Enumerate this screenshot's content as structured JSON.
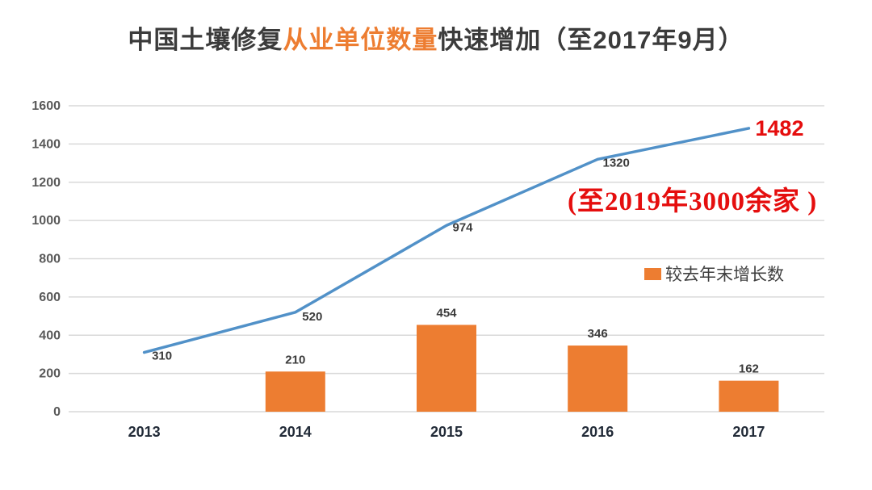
{
  "title": {
    "prefix": "中国土壤修复",
    "highlight": "从业单位数量",
    "suffix": "快速增加（至2017年9月）"
  },
  "annotations": {
    "note": "(至2019年3000余家 )",
    "final_value": "1482"
  },
  "colors": {
    "line": "#5191c8",
    "bar": "#ed7d31",
    "red": "#e50e0e",
    "grid": "#d9d9d9",
    "title_text": "#3b3b3b",
    "title_highlight": "#ed7d31",
    "y_tick_text": "#595959",
    "x_tick_text": "#222b38",
    "data_label_text": "#3b3b3b"
  },
  "chart_data": {
    "type": "line+bar",
    "categories": [
      "2013",
      "2014",
      "2015",
      "2016",
      "2017"
    ],
    "series": [
      {
        "name": "",
        "type": "line",
        "values": [
          310,
          520,
          974,
          1320,
          1482
        ]
      },
      {
        "name": "较去年末增长数",
        "type": "bar",
        "values": [
          null,
          210,
          454,
          346,
          162
        ]
      }
    ],
    "ylim": [
      0,
      1600
    ],
    "ytick_step": 200,
    "yticks": [
      0,
      200,
      400,
      600,
      800,
      1000,
      1200,
      1400,
      1600
    ],
    "grid": true,
    "legend_position": "right-middle",
    "data_labels": true
  }
}
